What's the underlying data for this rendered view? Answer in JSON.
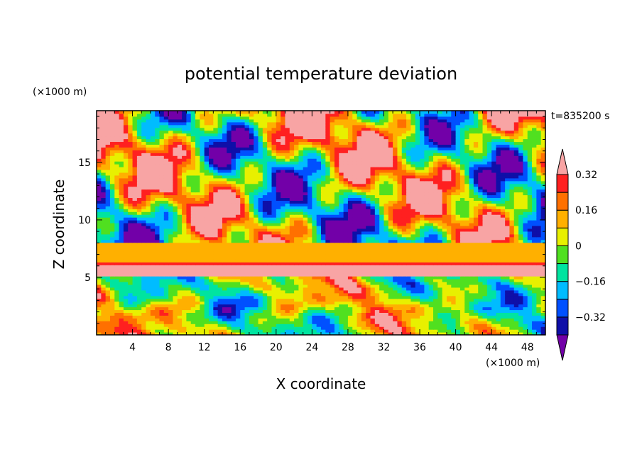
{
  "chart_data": {
    "type": "heatmap",
    "title": "potential temperature deviation",
    "xlabel": "X coordinate",
    "ylabel": "Z coordinate",
    "x_unit": "(×1000 m)",
    "y_unit": "(×1000 m)",
    "time_label": "t=835200 s",
    "xlim": [
      0,
      50
    ],
    "ylim": [
      0,
      19.5
    ],
    "x_ticks": [
      4,
      8,
      12,
      16,
      20,
      24,
      28,
      32,
      36,
      40,
      44,
      48
    ],
    "y_ticks": [
      5,
      10,
      15
    ],
    "colorbar": {
      "levels": [
        -0.4,
        -0.32,
        -0.24,
        -0.16,
        -0.08,
        0,
        0.08,
        0.16,
        0.24,
        0.32,
        0.4
      ],
      "labeled_levels": [
        {
          "value": 0.32,
          "label": "0.32"
        },
        {
          "value": 0.16,
          "label": "0.16"
        },
        {
          "value": 0,
          "label": "0"
        },
        {
          "value": -0.16,
          "label": "−0.16"
        },
        {
          "value": -0.32,
          "label": "−0.32"
        }
      ],
      "colors": [
        "#7200a8",
        "#0f0fa8",
        "#0050ff",
        "#00bcff",
        "#00e4a0",
        "#50e020",
        "#e8f000",
        "#ffb000",
        "#ff7000",
        "#ff2020",
        "#f8a4a4"
      ],
      "extend": "both"
    },
    "field_bands": [
      {
        "z_range": [
          0,
          5
        ],
        "description": "mixed oscillating cells"
      },
      {
        "z_range": [
          5,
          6.2
        ],
        "value": 0.44
      },
      {
        "z_range": [
          6.2,
          6.4
        ],
        "value": 0.28
      },
      {
        "z_range": [
          6.4,
          8
        ],
        "value": 0.1
      },
      {
        "z_range": [
          8,
          19.5
        ],
        "description": "turbulent patches"
      }
    ]
  }
}
